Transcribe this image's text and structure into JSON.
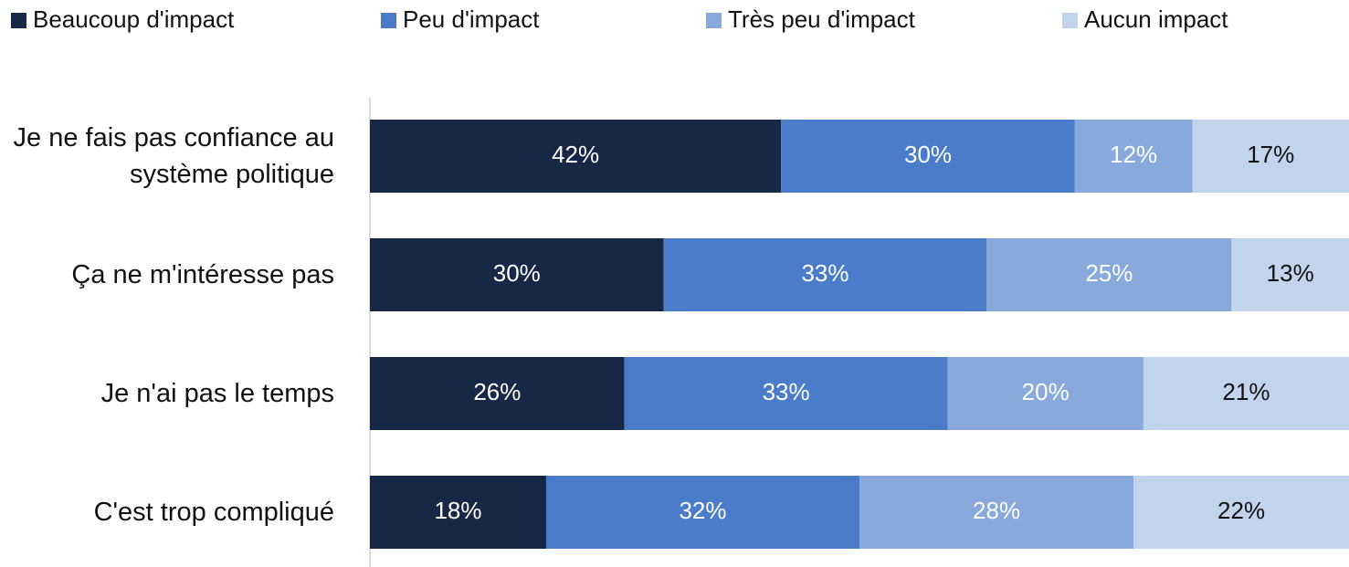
{
  "chart_data": {
    "type": "stacked-bar-horizontal",
    "categories": [
      "Je ne fais pas confiance au système politique",
      "Ça ne m'intéresse pas",
      "Je n'ai pas le temps",
      "C'est trop compliqué"
    ],
    "series": [
      {
        "name": "Beaucoup d'impact",
        "color": "#162846",
        "label_color": "#ffffff",
        "values": [
          42,
          30,
          26,
          18
        ],
        "value_labels": [
          "42%",
          "30%",
          "26%",
          "18%"
        ]
      },
      {
        "name": "Peu d'impact",
        "color": "#4a7cc9",
        "label_color": "#ffffff",
        "values": [
          30,
          33,
          33,
          32
        ],
        "value_labels": [
          "30%",
          "33%",
          "33%",
          "32%"
        ]
      },
      {
        "name": "Très peu d'impact",
        "color": "#87a9dc",
        "label_color": "#ffffff",
        "values": [
          12,
          25,
          20,
          28
        ],
        "value_labels": [
          "12%",
          "25%",
          "20%",
          "28%"
        ]
      },
      {
        "name": "Aucun impact",
        "color": "#c2d4ec",
        "label_color": "#111111",
        "values": [
          17,
          13,
          21,
          22
        ],
        "value_labels": [
          "17%",
          "13%",
          "21%",
          "22%"
        ]
      }
    ],
    "xlim": [
      0,
      100
    ],
    "legend": "top"
  }
}
